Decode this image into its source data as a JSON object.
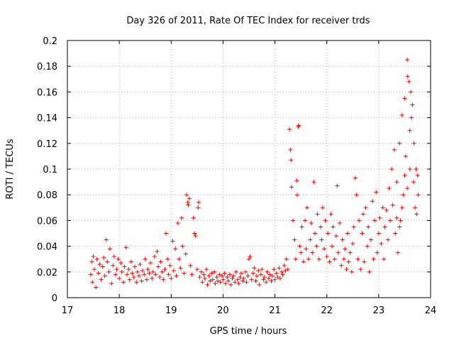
{
  "chart_data": {
    "type": "scatter",
    "title": "Day 326 of 2011, Rate Of TEC Index for receiver trds",
    "xlabel": "GPS time / hours",
    "ylabel": "ROTI / TECUs",
    "xlim": [
      17,
      24
    ],
    "ylim": [
      0,
      0.2
    ],
    "x_ticks": [
      "17",
      "18",
      "19",
      "20",
      "21",
      "22",
      "23",
      "24"
    ],
    "y_ticks": [
      "0",
      "0.02",
      "0.04",
      "0.06",
      "0.08",
      "0.1",
      "0.12",
      "0.14",
      "0.16",
      "0.18",
      "0.2"
    ],
    "grid": true,
    "marker": "+",
    "color": "#ff0000",
    "series": [
      {
        "points": [
          [
            17.45,
            0.018
          ],
          [
            17.47,
            0.028
          ],
          [
            17.48,
            0.012
          ],
          [
            17.5,
            0.032
          ],
          [
            17.52,
            0.022
          ],
          [
            17.55,
            0.008
          ],
          [
            17.57,
            0.03
          ],
          [
            17.6,
            0.019
          ],
          [
            17.62,
            0.026
          ],
          [
            17.65,
            0.014
          ],
          [
            17.68,
            0.024
          ],
          [
            17.7,
            0.031
          ],
          [
            17.72,
            0.017
          ],
          [
            17.75,
            0.045
          ],
          [
            17.77,
            0.028
          ],
          [
            17.8,
            0.02
          ],
          [
            17.82,
            0.038
          ],
          [
            17.85,
            0.011
          ],
          [
            17.88,
            0.025
          ],
          [
            17.9,
            0.032
          ],
          [
            17.93,
            0.018
          ],
          [
            17.95,
            0.022
          ],
          [
            17.98,
            0.03
          ],
          [
            18.0,
            0.015
          ],
          [
            18.03,
            0.027
          ],
          [
            18.05,
            0.02
          ],
          [
            18.08,
            0.012
          ],
          [
            18.1,
            0.024
          ],
          [
            18.13,
            0.039
          ],
          [
            18.15,
            0.018
          ],
          [
            18.18,
            0.022
          ],
          [
            18.2,
            0.014
          ],
          [
            18.23,
            0.028
          ],
          [
            18.25,
            0.019
          ],
          [
            18.28,
            0.016
          ],
          [
            18.3,
            0.024
          ],
          [
            18.33,
            0.012
          ],
          [
            18.35,
            0.02
          ],
          [
            18.38,
            0.017
          ],
          [
            18.4,
            0.026
          ],
          [
            18.43,
            0.013
          ],
          [
            18.45,
            0.021
          ],
          [
            18.48,
            0.018
          ],
          [
            18.5,
            0.03
          ],
          [
            18.53,
            0.014
          ],
          [
            18.55,
            0.022
          ],
          [
            18.58,
            0.019
          ],
          [
            18.6,
            0.027
          ],
          [
            18.63,
            0.015
          ],
          [
            18.65,
            0.02
          ],
          [
            18.68,
            0.032
          ],
          [
            18.7,
            0.018
          ],
          [
            18.73,
            0.036
          ],
          [
            18.75,
            0.024
          ],
          [
            18.78,
            0.016
          ],
          [
            18.8,
            0.028
          ],
          [
            18.83,
            0.02
          ],
          [
            18.85,
            0.014
          ],
          [
            18.88,
            0.022
          ],
          [
            18.9,
            0.05
          ],
          [
            18.93,
            0.03
          ],
          [
            18.95,
            0.018
          ],
          [
            18.98,
            0.025
          ],
          [
            19.0,
            0.015
          ],
          [
            19.03,
            0.044
          ],
          [
            19.05,
            0.021
          ],
          [
            19.08,
            0.038
          ],
          [
            19.1,
            0.017
          ],
          [
            19.13,
            0.058
          ],
          [
            19.15,
            0.03
          ],
          [
            19.18,
            0.023
          ],
          [
            19.2,
            0.062
          ],
          [
            19.22,
            0.04
          ],
          [
            19.25,
            0.019
          ],
          [
            19.28,
            0.034
          ],
          [
            19.3,
            0.08
          ],
          [
            19.32,
            0.074
          ],
          [
            19.33,
            0.072
          ],
          [
            19.35,
            0.077
          ],
          [
            19.37,
            0.025
          ],
          [
            19.4,
            0.018
          ],
          [
            19.43,
            0.062
          ],
          [
            19.45,
            0.05
          ],
          [
            19.47,
            0.048
          ],
          [
            19.5,
            0.022
          ],
          [
            19.52,
            0.07
          ],
          [
            19.53,
            0.074
          ],
          [
            19.55,
            0.016
          ],
          [
            19.58,
            0.02
          ],
          [
            19.6,
            0.012
          ],
          [
            19.63,
            0.018
          ],
          [
            19.65,
            0.015
          ],
          [
            19.68,
            0.022
          ],
          [
            19.7,
            0.01
          ],
          [
            19.73,
            0.017
          ],
          [
            19.75,
            0.013
          ],
          [
            19.78,
            0.019
          ],
          [
            19.8,
            0.014
          ],
          [
            19.83,
            0.02
          ],
          [
            19.85,
            0.011
          ],
          [
            19.88,
            0.016
          ],
          [
            19.9,
            0.013
          ],
          [
            19.93,
            0.018
          ],
          [
            19.95,
            0.012
          ],
          [
            19.98,
            0.017
          ],
          [
            20.0,
            0.014
          ],
          [
            20.03,
            0.019
          ],
          [
            20.05,
            0.011
          ],
          [
            20.08,
            0.016
          ],
          [
            20.1,
            0.013
          ],
          [
            20.13,
            0.018
          ],
          [
            20.15,
            0.01
          ],
          [
            20.18,
            0.015
          ],
          [
            20.2,
            0.017
          ],
          [
            20.23,
            0.012
          ],
          [
            20.25,
            0.02
          ],
          [
            20.28,
            0.014
          ],
          [
            20.3,
            0.011
          ],
          [
            20.33,
            0.016
          ],
          [
            20.35,
            0.019
          ],
          [
            20.38,
            0.013
          ],
          [
            20.4,
            0.015
          ],
          [
            20.43,
            0.02
          ],
          [
            20.45,
            0.012
          ],
          [
            20.48,
            0.017
          ],
          [
            20.5,
            0.03
          ],
          [
            20.52,
            0.032
          ],
          [
            20.55,
            0.014
          ],
          [
            20.58,
            0.019
          ],
          [
            20.6,
            0.023
          ],
          [
            20.63,
            0.013
          ],
          [
            20.65,
            0.017
          ],
          [
            20.68,
            0.021
          ],
          [
            20.7,
            0.01
          ],
          [
            20.73,
            0.018
          ],
          [
            20.75,
            0.022
          ],
          [
            20.78,
            0.014
          ],
          [
            20.8,
            0.016
          ],
          [
            20.83,
            0.012
          ],
          [
            20.85,
            0.02
          ],
          [
            20.88,
            0.015
          ],
          [
            20.9,
            0.018
          ],
          [
            20.93,
            0.013
          ],
          [
            20.95,
            0.017
          ],
          [
            20.98,
            0.022
          ],
          [
            21.0,
            0.014
          ],
          [
            21.03,
            0.019
          ],
          [
            21.05,
            0.016
          ],
          [
            21.08,
            0.023
          ],
          [
            21.1,
            0.015
          ],
          [
            21.13,
            0.02
          ],
          [
            21.15,
            0.018
          ],
          [
            21.18,
            0.025
          ],
          [
            21.2,
            0.021
          ],
          [
            21.22,
            0.03
          ],
          [
            21.25,
            0.022
          ],
          [
            21.28,
            0.131
          ],
          [
            21.3,
            0.115
          ],
          [
            21.31,
            0.107
          ],
          [
            21.32,
            0.086
          ],
          [
            21.35,
            0.06
          ],
          [
            21.38,
            0.045
          ],
          [
            21.4,
            0.03
          ],
          [
            21.42,
            0.091
          ],
          [
            21.43,
            0.08
          ],
          [
            21.45,
            0.133
          ],
          [
            21.46,
            0.134
          ],
          [
            21.48,
            0.04
          ],
          [
            21.5,
            0.035
          ],
          [
            21.52,
            0.055
          ],
          [
            21.55,
            0.028
          ],
          [
            21.58,
            0.06
          ],
          [
            21.6,
            0.038
          ],
          [
            21.62,
            0.07
          ],
          [
            21.65,
            0.03
          ],
          [
            21.68,
            0.045
          ],
          [
            21.7,
            0.058
          ],
          [
            21.72,
            0.035
          ],
          [
            21.75,
            0.09
          ],
          [
            21.77,
            0.05
          ],
          [
            21.8,
            0.04
          ],
          [
            21.82,
            0.065
          ],
          [
            21.85,
            0.03
          ],
          [
            21.88,
            0.055
          ],
          [
            21.9,
            0.045
          ],
          [
            21.92,
            0.07
          ],
          [
            21.95,
            0.038
          ],
          [
            21.97,
            0.06
          ],
          [
            22.0,
            0.032
          ],
          [
            22.02,
            0.05
          ],
          [
            22.05,
            0.028
          ],
          [
            22.08,
            0.065
          ],
          [
            22.1,
            0.04
          ],
          [
            22.12,
            0.055
          ],
          [
            22.15,
            0.03
          ],
          [
            22.18,
            0.048
          ],
          [
            22.2,
            0.087
          ],
          [
            22.22,
            0.035
          ],
          [
            22.25,
            0.058
          ],
          [
            22.28,
            0.025
          ],
          [
            22.3,
            0.045
          ],
          [
            22.33,
            0.03
          ],
          [
            22.35,
            0.038
          ],
          [
            22.38,
            0.022
          ],
          [
            22.4,
            0.05
          ],
          [
            22.42,
            0.028
          ],
          [
            22.45,
            0.035
          ],
          [
            22.48,
            0.02
          ],
          [
            22.5,
            0.042
          ],
          [
            22.52,
            0.055
          ],
          [
            22.55,
            0.093
          ],
          [
            22.57,
            0.08
          ],
          [
            22.6,
            0.03
          ],
          [
            22.62,
            0.06
          ],
          [
            22.65,
            0.022
          ],
          [
            22.68,
            0.05
          ],
          [
            22.7,
            0.065
          ],
          [
            22.72,
            0.028
          ],
          [
            22.75,
            0.07
          ],
          [
            22.78,
            0.04
          ],
          [
            22.8,
            0.055
          ],
          [
            22.82,
            0.02
          ],
          [
            22.85,
            0.045
          ],
          [
            22.88,
            0.075
          ],
          [
            22.9,
            0.03
          ],
          [
            22.92,
            0.06
          ],
          [
            22.95,
            0.082
          ],
          [
            22.97,
            0.035
          ],
          [
            23.0,
            0.05
          ],
          [
            23.02,
            0.062
          ],
          [
            23.05,
            0.042
          ],
          [
            23.08,
            0.07
          ],
          [
            23.1,
            0.03
          ],
          [
            23.12,
            0.055
          ],
          [
            23.15,
            0.068
          ],
          [
            23.18,
            0.045
          ],
          [
            23.2,
            0.085
          ],
          [
            23.22,
            0.06
          ],
          [
            23.25,
            0.1
          ],
          [
            23.27,
            0.072
          ],
          [
            23.3,
            0.115
          ],
          [
            23.32,
            0.05
          ],
          [
            23.35,
            0.09
          ],
          [
            23.37,
            0.035
          ],
          [
            23.4,
            0.12
          ],
          [
            23.42,
            0.06
          ],
          [
            23.45,
            0.142
          ],
          [
            23.47,
            0.08
          ],
          [
            23.5,
            0.155
          ],
          [
            23.52,
            0.11
          ],
          [
            23.55,
            0.185
          ],
          [
            23.56,
            0.172
          ],
          [
            23.58,
            0.168
          ],
          [
            23.6,
            0.13
          ],
          [
            23.62,
            0.16
          ],
          [
            23.63,
            0.14
          ],
          [
            23.65,
            0.15
          ],
          [
            23.67,
            0.09
          ],
          [
            23.68,
            0.12
          ],
          [
            23.7,
            0.07
          ],
          [
            23.72,
            0.1
          ],
          [
            23.73,
            0.065
          ],
          [
            23.75,
            0.095
          ],
          [
            23.76,
            0.08
          ],
          [
            23.6,
            0.1
          ],
          [
            23.55,
            0.085
          ],
          [
            23.5,
            0.095
          ],
          [
            23.45,
            0.07
          ],
          [
            23.4,
            0.055
          ],
          [
            23.35,
            0.062
          ]
        ]
      }
    ]
  }
}
